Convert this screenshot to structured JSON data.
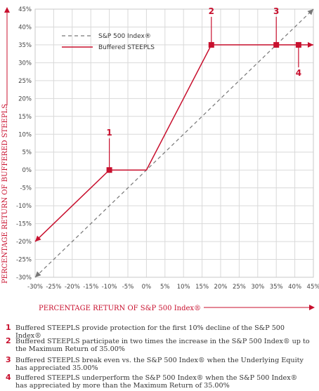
{
  "chart_data": {
    "type": "line",
    "xlabel": "PERCENTAGE RETURN OF S&P 500 Index®",
    "ylabel": "PERCENTAGE RETURN OF BUFFERED STEEPLS",
    "xlim": [
      -30,
      45
    ],
    "ylim": [
      -30,
      45
    ],
    "x_ticks": [
      "-30%",
      "-25%",
      "-20%",
      "-15%",
      "-10%",
      "-5%",
      "0%",
      "5%",
      "10%",
      "15%",
      "20%",
      "25%",
      "30%",
      "35%",
      "40%",
      "45%"
    ],
    "y_ticks": [
      "45%",
      "40%",
      "35%",
      "30%",
      "25%",
      "20%",
      "15%",
      "10%",
      "5%",
      "0%",
      "-5%",
      "-10%",
      "-15%",
      "-20%",
      "-25%",
      "-30%"
    ],
    "grid": true,
    "legend_position": "top-left",
    "series": [
      {
        "name": "S&P 500 Index®",
        "style": "dashed",
        "color": "#777777",
        "x": [
          -30,
          45
        ],
        "y": [
          -30,
          45
        ]
      },
      {
        "name": "Buffered STEEPLS",
        "style": "solid",
        "color": "#c8102e",
        "x": [
          -30,
          -10,
          0,
          17.5,
          45
        ],
        "y": [
          -20,
          0,
          0,
          35,
          35
        ]
      }
    ],
    "markers": [
      {
        "label": "1",
        "x": -10,
        "y": 0
      },
      {
        "label": "2",
        "x": 17.5,
        "y": 35
      },
      {
        "label": "3",
        "x": 35,
        "y": 35
      },
      {
        "label": "4",
        "x": 41,
        "y": 35
      }
    ]
  },
  "notes": [
    {
      "num": "1",
      "text": "Buffered STEEPLS provide protection for the first 10% decline of the S&P 500 Index®"
    },
    {
      "num": "2",
      "text": "Buffered STEEPLS participate in two times the increase in the S&P 500 Index® up to the Maximum Return of 35.00%"
    },
    {
      "num": "3",
      "text": "Buffered STEEPLS break even vs. the S&P 500 Index® when the Underlying Equity has appreciated 35.00%"
    },
    {
      "num": "4",
      "text": "Buffered STEEPLS underperform the S&P 500 Index® when the S&P 500 Index® has appreciated by more than the Maximum Return of 35.00%"
    }
  ],
  "colors": {
    "accent": "#c8102e",
    "grid": "#d9d9d9",
    "dashed": "#777777"
  }
}
